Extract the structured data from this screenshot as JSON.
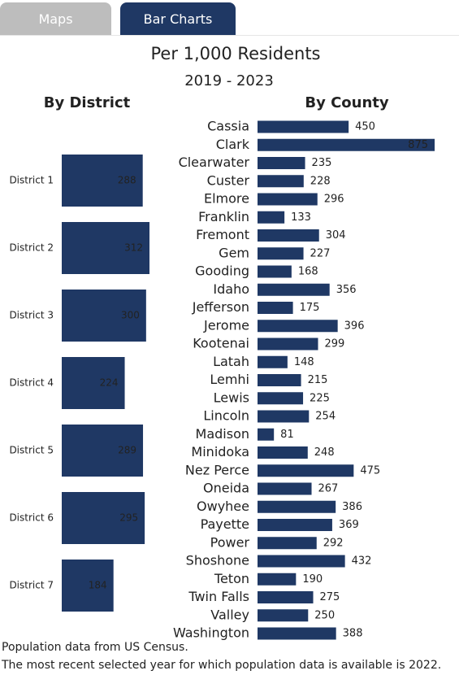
{
  "tabs": [
    "Maps",
    "Bar Charts"
  ],
  "title": "Per 1,000 Residents",
  "subtitle": "2019 - 2023",
  "chart_data": [
    {
      "type": "bar",
      "orientation": "horizontal",
      "title": "By District",
      "categories": [
        "District 1",
        "District 2",
        "District 3",
        "District 4",
        "District 5",
        "District 6",
        "District 7"
      ],
      "values": [
        288,
        312,
        300,
        224,
        289,
        295,
        184
      ],
      "color": "#1f3864",
      "value_label_position": "inside"
    },
    {
      "type": "bar",
      "orientation": "horizontal",
      "title": "By County",
      "categories": [
        "Cassia",
        "Clark",
        "Clearwater",
        "Custer",
        "Elmore",
        "Franklin",
        "Fremont",
        "Gem",
        "Gooding",
        "Idaho",
        "Jefferson",
        "Jerome",
        "Kootenai",
        "Latah",
        "Lemhi",
        "Lewis",
        "Lincoln",
        "Madison",
        "Minidoka",
        "Nez Perce",
        "Oneida",
        "Owyhee",
        "Payette",
        "Power",
        "Shoshone",
        "Teton",
        "Twin Falls",
        "Valley",
        "Washington"
      ],
      "values": [
        450,
        875,
        235,
        228,
        296,
        133,
        304,
        227,
        168,
        356,
        175,
        396,
        299,
        148,
        215,
        225,
        254,
        81,
        248,
        475,
        267,
        386,
        369,
        292,
        432,
        190,
        275,
        250,
        388
      ],
      "color": "#1f3864",
      "value_label_position": "outside"
    }
  ],
  "notes": [
    "Population data from US Census.",
    "The most recent selected year for which population data is available is 2022."
  ]
}
